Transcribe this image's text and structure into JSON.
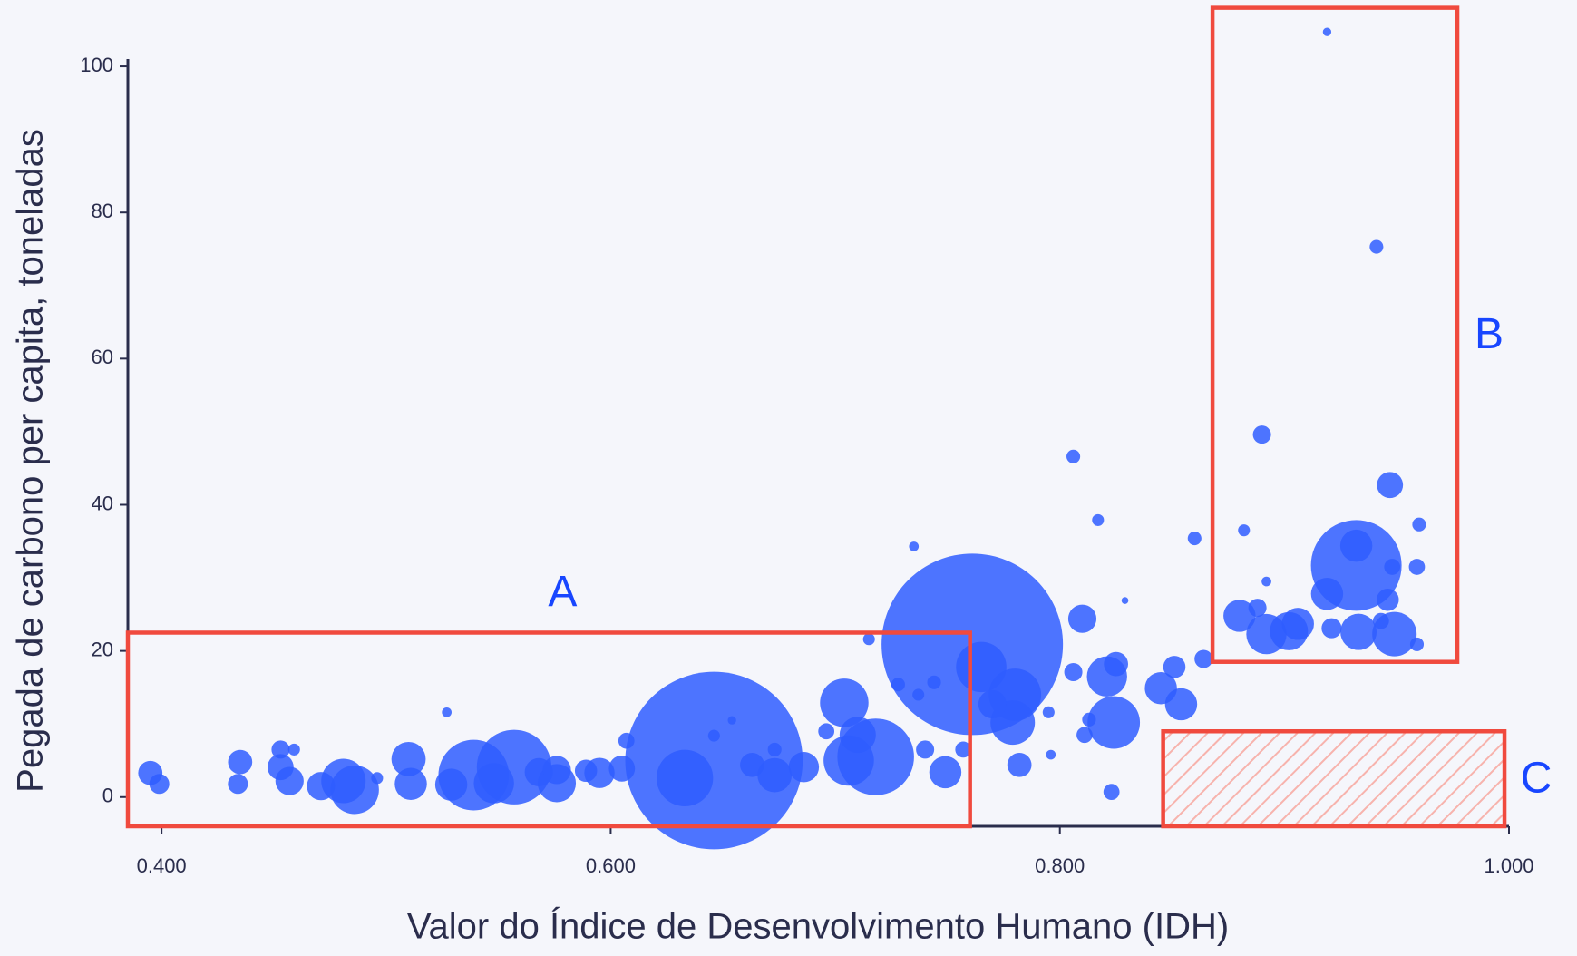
{
  "chart_data": {
    "type": "bubble",
    "xlabel": "Valor do Índice de Desenvolvimento Humano (IDH)",
    "ylabel": "Pegada de carbono per capita, toneladas",
    "color": "#2f5dff",
    "x": [
      0.395,
      0.399,
      0.435,
      0.434,
      0.453,
      0.459,
      0.453,
      0.457,
      0.471,
      0.481,
      0.486,
      0.496,
      0.51,
      0.511,
      0.527,
      0.529,
      0.539,
      0.557,
      0.548,
      0.568,
      0.576,
      0.576,
      0.589,
      0.595,
      0.605,
      0.607,
      0.646,
      0.633,
      0.654,
      0.646,
      0.663,
      0.673,
      0.673,
      0.686,
      0.704,
      0.71,
      0.718,
      0.706,
      0.696,
      0.715,
      0.728,
      0.735,
      0.737,
      0.744,
      0.74,
      0.749,
      0.757,
      0.761,
      0.765,
      0.78,
      0.779,
      0.77,
      0.782,
      0.795,
      0.796,
      0.806,
      0.81,
      0.806,
      0.817,
      0.821,
      0.824,
      0.825,
      0.813,
      0.811,
      0.823,
      0.829,
      0.845,
      0.851,
      0.854,
      0.86,
      0.864,
      0.919,
      0.941,
      0.89,
      0.947,
      0.882,
      0.96,
      0.932,
      0.932,
      0.948,
      0.959,
      0.88,
      0.892,
      0.902,
      0.906,
      0.919,
      0.933,
      0.949,
      0.946,
      0.888,
      0.921,
      0.959,
      0.892,
      0.943
    ],
    "y": [
      3.3,
      1.8,
      4.8,
      1.8,
      6.5,
      6.5,
      4.1,
      2.2,
      1.5,
      2.2,
      1.0,
      2.6,
      5.2,
      1.8,
      11.6,
      1.7,
      3.0,
      4.1,
      1.9,
      3.4,
      1.9,
      3.7,
      3.6,
      3.3,
      3.9,
      7.7,
      5.0,
      2.6,
      10.5,
      8.4,
      4.4,
      3.0,
      6.5,
      4.1,
      12.9,
      8.5,
      5.5,
      5.0,
      9.0,
      21.6,
      15.4,
      34.3,
      14.0,
      15.7,
      6.5,
      3.4,
      6.5,
      20.9,
      17.8,
      14.0,
      10.2,
      12.7,
      4.4,
      11.6,
      5.8,
      46.6,
      24.4,
      17.1,
      37.9,
      16.5,
      10.2,
      18.2,
      10.6,
      8.5,
      0.7,
      26.9,
      14.9,
      17.8,
      12.7,
      35.4,
      18.9,
      104.7,
      75.3,
      49.6,
      42.7,
      36.5,
      37.3,
      31.7,
      34.4,
      31.5,
      31.5,
      24.8,
      22.3,
      22.7,
      23.7,
      27.8,
      22.6,
      22.3,
      27.0,
      25.9,
      23.1,
      20.9,
      29.5,
      24.1
    ],
    "sizes": [
      25,
      17,
      25,
      17,
      14,
      6,
      29,
      34,
      34,
      84,
      100,
      6,
      50,
      44,
      4,
      44,
      212,
      237,
      69,
      34,
      62,
      34,
      21,
      39,
      29,
      11,
      1340,
      136,
      3,
      6,
      25,
      50,
      8,
      39,
      100,
      56,
      250,
      108,
      11,
      6,
      8,
      4,
      6,
      8,
      14,
      44,
      11,
      1400,
      108,
      117,
      84,
      34,
      25,
      6,
      4,
      8,
      34,
      14,
      6,
      69,
      117,
      25,
      8,
      11,
      11,
      2,
      44,
      21,
      44,
      8,
      14,
      3,
      8,
      14,
      29,
      6,
      8,
      350,
      44,
      11,
      11,
      44,
      69,
      62,
      44,
      44,
      56,
      84,
      21,
      14,
      17,
      8,
      4,
      11
    ],
    "xlim": [
      0.385,
      1.0
    ],
    "ylim": [
      -4,
      101
    ],
    "xticks": [
      {
        "value": 0.4,
        "label": "0.400"
      },
      {
        "value": 0.6,
        "label": "0.600"
      },
      {
        "value": 0.8,
        "label": "0.800"
      },
      {
        "value": 1.0,
        "label": "1.000"
      }
    ],
    "yticks": [
      0,
      20,
      40,
      60,
      80,
      100
    ],
    "annotations": [
      {
        "label": "A",
        "x": [
          0.385,
          0.76
        ],
        "y": [
          -4,
          22.5
        ],
        "label_position": "top",
        "hatch": false
      },
      {
        "label": "B",
        "x": [
          0.868,
          0.977
        ],
        "y": [
          18.5,
          108
        ],
        "label_position": "right",
        "hatch": false
      },
      {
        "label": "C",
        "x": [
          0.846,
          0.998
        ],
        "y": [
          -4,
          9
        ],
        "label_position": "right",
        "hatch": true
      }
    ]
  }
}
